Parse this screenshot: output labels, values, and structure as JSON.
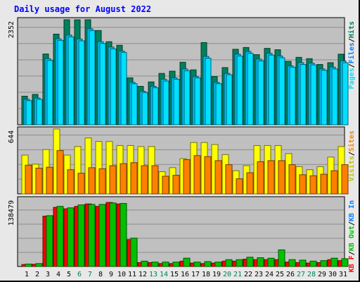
{
  "title": "Daily usage for August 2022",
  "colors": {
    "background": "#e8e8e8",
    "panel": "#c0c0c0",
    "hits": "#00805c",
    "files": "#00c0ff",
    "pages": "#00e0ff",
    "visits": "#ffff00",
    "sites": "#ff8000",
    "kb_in": "#ff0000",
    "kb_out": "#00c000",
    "weekend_label": "#00805c",
    "title": "#0000ff"
  },
  "chart_data": [
    {
      "type": "bar",
      "panel": "top",
      "y_tick_label": "2352",
      "ylim": [
        0,
        2352
      ],
      "grid": true,
      "legend_parts": [
        {
          "text": "Pages",
          "color": "#00e0ff"
        },
        {
          "text": "/",
          "color": "#000000"
        },
        {
          "text": "Files",
          "color": "#0080ff"
        },
        {
          "text": "/",
          "color": "#000000"
        },
        {
          "text": "Hits",
          "color": "#00805c"
        }
      ],
      "categories": [
        "1",
        "2",
        "3",
        "4",
        "5",
        "6",
        "7",
        "8",
        "9",
        "10",
        "11",
        "12",
        "13",
        "14",
        "15",
        "16",
        "17",
        "18",
        "19",
        "20",
        "21",
        "22",
        "23",
        "24",
        "25",
        "26",
        "27",
        "28",
        "29",
        "30",
        "31"
      ],
      "series": [
        {
          "name": "Hits",
          "color": "#00805c",
          "values": [
            640,
            680,
            1585,
            2030,
            2352,
            2350,
            2352,
            2110,
            1860,
            1780,
            1050,
            860,
            960,
            1150,
            1200,
            1400,
            1230,
            1840,
            1080,
            1280,
            1690,
            1730,
            1570,
            1710,
            1680,
            1420,
            1510,
            1480,
            1350,
            1390,
            1580
          ]
        },
        {
          "name": "Files",
          "color": "#00c0ff",
          "values": [
            570,
            600,
            1480,
            1925,
            2010,
            1920,
            2150,
            1860,
            1740,
            1650,
            950,
            750,
            860,
            1020,
            1050,
            1250,
            1080,
            1530,
            950,
            1150,
            1580,
            1640,
            1470,
            1600,
            1540,
            1320,
            1390,
            1380,
            1250,
            1290,
            1430
          ]
        },
        {
          "name": "Pages",
          "color": "#00e0ff",
          "values": [
            540,
            570,
            1440,
            1890,
            1970,
            1880,
            2110,
            1820,
            1700,
            1620,
            920,
            720,
            830,
            980,
            1020,
            1210,
            1050,
            1490,
            920,
            1120,
            1540,
            1600,
            1430,
            1560,
            1500,
            1290,
            1350,
            1340,
            1220,
            1250,
            1390
          ]
        }
      ]
    },
    {
      "type": "bar",
      "panel": "middle",
      "y_tick_label": "644",
      "ylim": [
        0,
        644
      ],
      "grid": true,
      "legend_parts": [
        {
          "text": "Visits",
          "color": "#c0c000"
        },
        {
          "text": "/",
          "color": "#000000"
        },
        {
          "text": "Sites",
          "color": "#ff8000"
        }
      ],
      "series": [
        {
          "name": "Visits",
          "color": "#ffff00",
          "values": [
            385,
            295,
            440,
            644,
            385,
            470,
            555,
            520,
            520,
            480,
            480,
            470,
            470,
            220,
            260,
            350,
            510,
            510,
            490,
            390,
            230,
            280,
            480,
            480,
            480,
            400,
            270,
            240,
            270,
            365,
            470
          ]
        },
        {
          "name": "Sites",
          "color": "#ff8000",
          "values": [
            285,
            255,
            265,
            430,
            240,
            205,
            260,
            250,
            280,
            300,
            310,
            280,
            280,
            175,
            185,
            340,
            380,
            370,
            330,
            290,
            150,
            210,
            320,
            330,
            330,
            290,
            190,
            180,
            195,
            230,
            290
          ]
        }
      ]
    },
    {
      "type": "bar",
      "panel": "bottom",
      "y_tick_label": "138479",
      "ylim": [
        0,
        138479
      ],
      "grid": true,
      "legend_parts": [
        {
          "text": "KB F",
          "color": "#ff0000"
        },
        {
          "text": "/",
          "color": "#000000"
        },
        {
          "text": "KB Out",
          "color": "#00c000"
        },
        {
          "text": "/",
          "color": "#000000"
        },
        {
          "text": "KB In",
          "color": "#0080ff"
        }
      ],
      "series": [
        {
          "name": "KB F",
          "color": "#ff0000",
          "values": [
            4000,
            4500,
            103000,
            121000,
            118000,
            123000,
            128000,
            123000,
            131000,
            128000,
            55000,
            8000,
            8000,
            6000,
            6000,
            11000,
            7000,
            6000,
            7000,
            11000,
            11000,
            15000,
            14000,
            14000,
            14000,
            9000,
            8000,
            7000,
            8000,
            14000,
            12000
          ]
        },
        {
          "name": "KB Out",
          "color": "#00c000",
          "values": [
            5000,
            6000,
            104000,
            123000,
            120000,
            126000,
            127000,
            127000,
            130000,
            129000,
            58000,
            11000,
            9000,
            9000,
            9000,
            17000,
            9000,
            10000,
            9000,
            14000,
            14000,
            19000,
            18000,
            17000,
            34000,
            14000,
            13000,
            11000,
            12000,
            17000,
            16000
          ]
        }
      ]
    }
  ],
  "x_labels": [
    {
      "text": "1",
      "weekend": false
    },
    {
      "text": "2",
      "weekend": false
    },
    {
      "text": "3",
      "weekend": false
    },
    {
      "text": "4",
      "weekend": false
    },
    {
      "text": "5",
      "weekend": false
    },
    {
      "text": "6",
      "weekend": true
    },
    {
      "text": "7",
      "weekend": true
    },
    {
      "text": "8",
      "weekend": false
    },
    {
      "text": "9",
      "weekend": false
    },
    {
      "text": "10",
      "weekend": false
    },
    {
      "text": "11",
      "weekend": false
    },
    {
      "text": "12",
      "weekend": false
    },
    {
      "text": "13",
      "weekend": true
    },
    {
      "text": "14",
      "weekend": true
    },
    {
      "text": "15",
      "weekend": false
    },
    {
      "text": "16",
      "weekend": false
    },
    {
      "text": "17",
      "weekend": false
    },
    {
      "text": "18",
      "weekend": false
    },
    {
      "text": "19",
      "weekend": false
    },
    {
      "text": "20",
      "weekend": true
    },
    {
      "text": "21",
      "weekend": true
    },
    {
      "text": "22",
      "weekend": false
    },
    {
      "text": "23",
      "weekend": false
    },
    {
      "text": "24",
      "weekend": false
    },
    {
      "text": "25",
      "weekend": false
    },
    {
      "text": "26",
      "weekend": false
    },
    {
      "text": "27",
      "weekend": true
    },
    {
      "text": "28",
      "weekend": true
    },
    {
      "text": "29",
      "weekend": false
    },
    {
      "text": "30",
      "weekend": false
    },
    {
      "text": "31",
      "weekend": false
    }
  ]
}
